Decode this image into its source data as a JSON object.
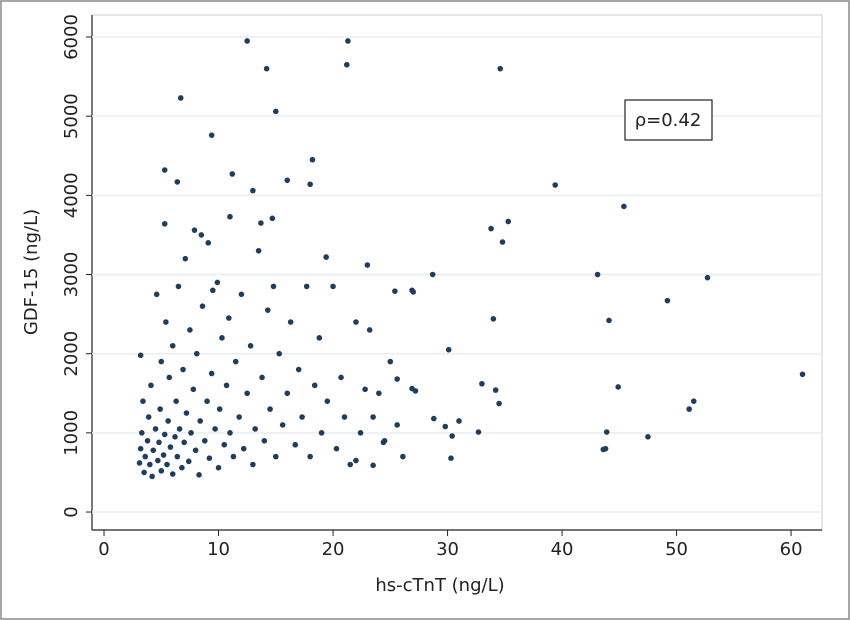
{
  "chart_data": {
    "type": "scatter",
    "xlabel": "hs-cTnT (ng/L)",
    "ylabel": "GDF-15 (ng/L)",
    "annotation": "ρ=0.42",
    "color": "#1f3d5e",
    "grid": true,
    "xlim": [
      -1.05,
      62.7
    ],
    "ylim": [
      -227,
      6278
    ],
    "xticks": [
      0,
      10,
      20,
      30,
      40,
      50,
      60
    ],
    "yticks": [
      0,
      1000,
      2000,
      3000,
      4000,
      5000,
      6000
    ],
    "x": [
      12.5,
      21.3,
      14.2,
      21.2,
      34.6,
      6.7,
      15,
      9.4,
      5.3,
      6.4,
      11.2,
      18.2,
      13,
      16,
      18,
      39.4,
      45.4,
      35.3,
      33.8,
      34.8,
      5.3,
      11,
      14.7,
      13.7,
      19.4,
      23,
      28.7,
      43.1,
      52.7,
      49.2,
      34,
      44.1,
      30.1,
      26.9,
      25.4,
      33,
      34.2,
      34.5,
      44.9,
      51.5,
      51.1,
      61,
      47.5,
      43.8,
      43.9,
      43.6,
      30.3,
      32.7,
      28.8,
      29.8,
      30.4,
      31,
      26.1,
      23.5,
      22,
      25.6,
      26.9,
      24.4,
      3.1,
      3.2,
      3.3,
      3.4,
      3.2,
      3.5,
      3.6,
      3.8,
      3.9,
      4,
      4.1,
      4.2,
      4.3,
      4.5,
      4.6,
      4.7,
      4.8,
      4.9,
      5,
      5,
      5.2,
      5.3,
      5.4,
      5.5,
      5.6,
      5.7,
      5.8,
      6,
      6,
      6.2,
      6.3,
      6.4,
      6.5,
      6.6,
      6.8,
      6.9,
      7,
      7.1,
      7.2,
      7.4,
      7.5,
      7.6,
      7.8,
      7.9,
      8,
      8.1,
      8.3,
      8.4,
      8.5,
      8.6,
      8.8,
      9,
      9.1,
      9.2,
      9.4,
      9.5,
      9.7,
      9.9,
      10,
      10.1,
      10.3,
      10.5,
      10.7,
      10.9,
      11,
      11.3,
      11.5,
      11.8,
      12,
      12.2,
      12.5,
      12.8,
      13,
      13.2,
      13.5,
      13.8,
      14,
      14.3,
      14.5,
      14.8,
      15,
      15.3,
      15.6,
      16,
      16.3,
      16.7,
      17,
      17.3,
      17.7,
      18,
      18.4,
      18.8,
      19,
      19.5,
      20,
      20.3,
      20.7,
      21,
      21.5,
      22,
      22.4,
      22.8,
      23.2,
      23.5,
      24,
      24.5,
      25,
      25.6,
      27.2,
      27
    ],
    "y": [
      5950,
      5950,
      5600,
      5650,
      5600,
      5230,
      5060,
      4760,
      4320,
      4170,
      4270,
      4450,
      4060,
      4190,
      4140,
      4130,
      3860,
      3670,
      3580,
      3410,
      3640,
      3730,
      3710,
      3650,
      3220,
      3120,
      3000,
      3000,
      2960,
      2670,
      2440,
      2420,
      2050,
      2800,
      2790,
      1620,
      1540,
      1370,
      1580,
      1400,
      1300,
      1740,
      950,
      800,
      1010,
      790,
      680,
      1010,
      1180,
      1080,
      960,
      1150,
      700,
      590,
      650,
      1680,
      1560,
      880,
      620,
      800,
      1000,
      1400,
      1980,
      500,
      700,
      900,
      1200,
      600,
      1600,
      450,
      780,
      1050,
      2750,
      650,
      880,
      1300,
      520,
      1900,
      720,
      980,
      2400,
      600,
      1150,
      1700,
      820,
      480,
      2100,
      950,
      1400,
      700,
      2850,
      1050,
      560,
      1800,
      880,
      3200,
      1250,
      640,
      2300,
      1000,
      1550,
      3560,
      780,
      2000,
      470,
      1150,
      3500,
      2600,
      900,
      1400,
      3400,
      680,
      1750,
      2800,
      1050,
      2900,
      560,
      1300,
      2200,
      850,
      1600,
      2450,
      1000,
      700,
      1900,
      1200,
      2750,
      800,
      1500,
      2100,
      600,
      1050,
      3300,
      1700,
      900,
      2550,
      1300,
      2850,
      700,
      2000,
      1100,
      1500,
      2400,
      850,
      1800,
      1200,
      2850,
      700,
      1600,
      2200,
      1000,
      1400,
      2850,
      800,
      1700,
      1200,
      600,
      2400,
      1000,
      1550,
      2300,
      1200,
      1500,
      900,
      1900,
      1100,
      1530,
      2780
    ]
  }
}
